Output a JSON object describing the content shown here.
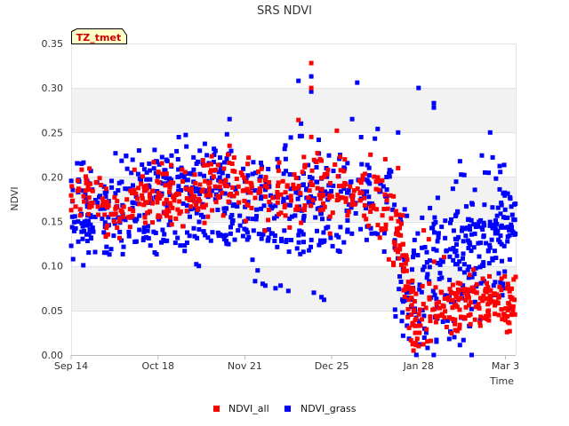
{
  "chart_data": {
    "type": "scatter",
    "title": "SRS NDVI",
    "xlabel": "Time",
    "ylabel": "NDVI",
    "badge": "TZ_tmet",
    "x_unit": "days since Sep 14",
    "xlim": [
      0,
      174
    ],
    "ylim": [
      0,
      0.35
    ],
    "x_ticks": [
      {
        "label": "Sep 14",
        "value": 0
      },
      {
        "label": "Oct 18",
        "value": 34
      },
      {
        "label": "Nov 21",
        "value": 68
      },
      {
        "label": "Dec 25",
        "value": 102
      },
      {
        "label": "Jan 28",
        "value": 136
      },
      {
        "label": "Mar 3",
        "value": 170
      }
    ],
    "y_ticks": [
      {
        "label": "0.00",
        "value": 0
      },
      {
        "label": "0.05",
        "value": 0.05
      },
      {
        "label": "0.10",
        "value": 0.1
      },
      {
        "label": "0.15",
        "value": 0.15
      },
      {
        "label": "0.20",
        "value": 0.2
      },
      {
        "label": "0.25",
        "value": 0.25
      },
      {
        "label": "0.30",
        "value": 0.3
      },
      {
        "label": "0.35",
        "value": 0.35
      }
    ],
    "grid": true,
    "legend_position": "bottom-center",
    "series": [
      {
        "name": "NDVI_all",
        "color": "#ff0000",
        "trend": [
          [
            0,
            0.18
          ],
          [
            10,
            0.175
          ],
          [
            15,
            0.16
          ],
          [
            22,
            0.17
          ],
          [
            35,
            0.18
          ],
          [
            45,
            0.185
          ],
          [
            55,
            0.19
          ],
          [
            65,
            0.19
          ],
          [
            75,
            0.185
          ],
          [
            85,
            0.18
          ],
          [
            95,
            0.19
          ],
          [
            105,
            0.185
          ],
          [
            115,
            0.18
          ],
          [
            120,
            0.175
          ],
          [
            124,
            0.16
          ],
          [
            127,
            0.14
          ],
          [
            130,
            0.11
          ],
          [
            132,
            0.06
          ],
          [
            135,
            0.03
          ],
          [
            140,
            0.05
          ],
          [
            150,
            0.055
          ],
          [
            155,
            0.06
          ],
          [
            160,
            0.065
          ],
          [
            165,
            0.06
          ],
          [
            170,
            0.06
          ]
        ],
        "spread": [
          [
            0,
            0.015
          ],
          [
            120,
            0.02
          ],
          [
            127,
            0.025
          ],
          [
            133,
            0.02
          ],
          [
            174,
            0.015
          ]
        ],
        "counts": [
          [
            0,
            127,
            420
          ],
          [
            127,
            135,
            60
          ],
          [
            135,
            174,
            190
          ]
        ],
        "outliers": [
          [
            94,
            0.328
          ],
          [
            94,
            0.3
          ],
          [
            89,
            0.264
          ],
          [
            94,
            0.245
          ],
          [
            104,
            0.252
          ],
          [
            62,
            0.235
          ],
          [
            128,
            0.21
          ],
          [
            123,
            0.22
          ],
          [
            140,
            0.13
          ],
          [
            146,
            0.11
          ],
          [
            134,
            0.005
          ],
          [
            136,
            0.01
          ],
          [
            145,
            0.07
          ],
          [
            152,
            0.03
          ],
          [
            138,
            0.14
          ]
        ]
      },
      {
        "name": "NDVI_grass",
        "color": "#0000ff",
        "bands": [
          {
            "x0": 0,
            "x1": 126,
            "trend": [
              [
                0,
                0.17
              ],
              [
                10,
                0.165
              ],
              [
                20,
                0.175
              ],
              [
                30,
                0.185
              ],
              [
                40,
                0.18
              ],
              [
                50,
                0.18
              ],
              [
                60,
                0.185
              ],
              [
                70,
                0.18
              ],
              [
                80,
                0.18
              ],
              [
                90,
                0.19
              ],
              [
                100,
                0.185
              ],
              [
                110,
                0.18
              ],
              [
                118,
                0.175
              ],
              [
                126,
                0.17
              ]
            ],
            "spread": 0.025,
            "count": 430
          },
          {
            "x0": 0,
            "x1": 45,
            "trend": [
              [
                0,
                0.145
              ],
              [
                10,
                0.14
              ],
              [
                20,
                0.135
              ],
              [
                30,
                0.13
              ],
              [
                40,
                0.13
              ],
              [
                45,
                0.13
              ]
            ],
            "spread": 0.012,
            "count": 60
          },
          {
            "x0": 45,
            "x1": 110,
            "trend": [
              [
                45,
                0.135
              ],
              [
                60,
                0.135
              ],
              [
                70,
                0.13
              ],
              [
                80,
                0.128
              ],
              [
                90,
                0.128
              ],
              [
                100,
                0.13
              ],
              [
                110,
                0.128
              ]
            ],
            "spread": 0.008,
            "count": 70
          },
          {
            "x0": 28,
            "x1": 60,
            "trend": [
              [
                28,
                0.21
              ],
              [
                40,
                0.215
              ],
              [
                50,
                0.22
              ],
              [
                60,
                0.2
              ]
            ],
            "spread": 0.015,
            "count": 40
          },
          {
            "x0": 126,
            "x1": 174,
            "trend": [
              [
                126,
                0.1
              ],
              [
                130,
                0.09
              ],
              [
                135,
                0.07
              ],
              [
                140,
                0.08
              ],
              [
                150,
                0.1
              ],
              [
                160,
                0.12
              ],
              [
                174,
                0.13
              ]
            ],
            "spread": 0.045,
            "count": 230
          },
          {
            "x0": 140,
            "x1": 174,
            "trend": [
              [
                140,
                0.14
              ],
              [
                155,
                0.14
              ],
              [
                165,
                0.14
              ],
              [
                174,
                0.155
              ]
            ],
            "spread": 0.015,
            "count": 70
          }
        ],
        "outliers": [
          [
            89,
            0.308
          ],
          [
            94,
            0.313
          ],
          [
            94,
            0.296
          ],
          [
            112,
            0.306
          ],
          [
            90,
            0.26
          ],
          [
            62,
            0.265
          ],
          [
            61,
            0.248
          ],
          [
            56,
            0.225
          ],
          [
            110,
            0.265
          ],
          [
            120,
            0.254
          ],
          [
            142,
            0.283
          ],
          [
            142,
            0.278
          ],
          [
            164,
            0.25
          ],
          [
            165,
            0.222
          ],
          [
            162,
            0.205
          ],
          [
            75,
            0.08
          ],
          [
            76,
            0.078
          ],
          [
            80,
            0.075
          ],
          [
            82,
            0.078
          ],
          [
            85,
            0.072
          ],
          [
            98,
            0.065
          ],
          [
            99,
            0.062
          ],
          [
            73,
            0.095
          ],
          [
            72,
            0.083
          ],
          [
            71,
            0.107
          ],
          [
            49,
            0.102
          ],
          [
            50,
            0.1
          ],
          [
            14,
            0.115
          ],
          [
            15,
            0.113
          ],
          [
            13,
            0.115
          ],
          [
            95,
            0.07
          ],
          [
            143,
            0.017
          ],
          [
            148,
            0.018
          ],
          [
            150,
            0.02
          ],
          [
            139,
            0.025
          ],
          [
            136,
            0.3
          ],
          [
            128,
            0.25
          ]
        ]
      }
    ]
  }
}
